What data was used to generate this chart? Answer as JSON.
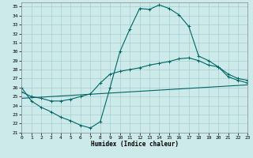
{
  "xlabel": "Humidex (Indice chaleur)",
  "background_color": "#cceaea",
  "grid_color": "#aacccc",
  "line_color": "#006666",
  "xlim": [
    0,
    23
  ],
  "ylim": [
    21,
    35.5
  ],
  "xticks": [
    0,
    1,
    2,
    3,
    4,
    5,
    6,
    7,
    8,
    9,
    10,
    11,
    12,
    13,
    14,
    15,
    16,
    17,
    18,
    19,
    20,
    21,
    22,
    23
  ],
  "yticks": [
    21,
    22,
    23,
    24,
    25,
    26,
    27,
    28,
    29,
    30,
    31,
    32,
    33,
    34,
    35
  ],
  "curve1_x": [
    0,
    1,
    2,
    3,
    4,
    5,
    6,
    7,
    8,
    9,
    10,
    11,
    12,
    13,
    14,
    15,
    16,
    17,
    18,
    19,
    20,
    21,
    22,
    23
  ],
  "curve1_y": [
    26.0,
    24.5,
    23.8,
    23.3,
    22.7,
    22.3,
    21.8,
    21.5,
    22.2,
    26.0,
    30.0,
    32.5,
    34.8,
    34.7,
    35.2,
    34.8,
    34.1,
    32.8,
    29.5,
    29.0,
    28.3,
    27.2,
    26.8,
    26.5
  ],
  "curve2_x": [
    0,
    1,
    2,
    3,
    4,
    5,
    6,
    7,
    8,
    9,
    10,
    11,
    12,
    13,
    14,
    15,
    16,
    17,
    18,
    19,
    20,
    21,
    22,
    23
  ],
  "curve2_y": [
    25.5,
    25.0,
    24.8,
    24.5,
    24.5,
    24.7,
    25.0,
    25.3,
    26.5,
    27.5,
    27.8,
    28.0,
    28.2,
    28.5,
    28.7,
    28.9,
    29.2,
    29.3,
    29.0,
    28.5,
    28.3,
    27.5,
    27.0,
    26.8
  ],
  "curve3_x": [
    0,
    23
  ],
  "curve3_y": [
    24.8,
    26.3
  ]
}
